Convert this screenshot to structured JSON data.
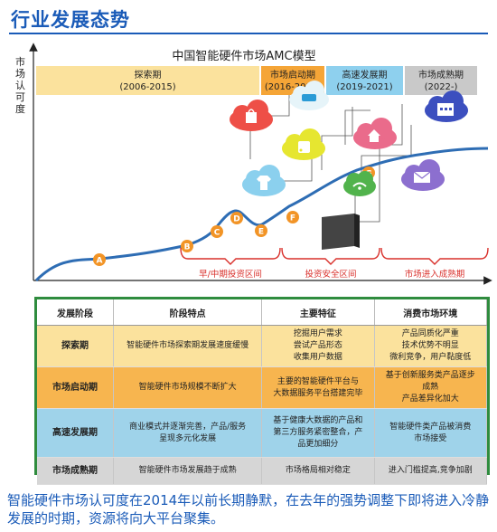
{
  "page": {
    "title": "行业发展态势",
    "caption": "智能硬件市场认可度在2014年以前长期静默，在去年的强势调整下即将进入冷静发展的时期，资源将向大平台聚集。"
  },
  "diagram": {
    "title": "中国智能硬件市场AMC模型",
    "ylabel": "市场认可度",
    "phases": [
      {
        "name": "探索期",
        "years": "(2006-2015)",
        "color": "#fbe29d"
      },
      {
        "name": "市场启动期",
        "years": "(2016-2018)",
        "color": "#f5a537"
      },
      {
        "name": "高速发展期",
        "years": "(2019-2021)",
        "color": "#8ed0ee"
      },
      {
        "name": "市场成熟期",
        "years": "(2022-)",
        "color": "#c9c9c9"
      }
    ],
    "points": [
      "A",
      "B",
      "C",
      "D",
      "E",
      "F",
      "G"
    ],
    "zones": [
      "早/中期投资区间",
      "投资安全区间",
      "市场进入成熟期"
    ],
    "icons": [
      "shirt-icon",
      "shopping-bag-icon",
      "rss-icon",
      "home-icon",
      "wifi-icon",
      "email-icon",
      "calendar-icon",
      "car-icon"
    ],
    "colors": {
      "curve": "#2e6db4",
      "point": "#f29426",
      "zone_bracket": "#d9312c"
    }
  },
  "table": {
    "headers": [
      "发展阶段",
      "阶段特点",
      "主要特征",
      "消费市场环境"
    ],
    "rows": [
      {
        "stage": "探索期",
        "feature": "智能硬件市场探索期发展速度缓慢",
        "main": "挖掘用户需求\n尝试产品形态\n收集用户数据",
        "consumer": "产品同质化严重\n技术优势不明显\n微利竞争，用户黏度低"
      },
      {
        "stage": "市场启动期",
        "feature": "智能硬件市场规模不断扩大",
        "main": "主要的智能硬件平台与\n大数据服务平台搭建完毕",
        "consumer": "基于创新服务类产品逐步\n成熟\n产品差异化加大"
      },
      {
        "stage": "高速发展期",
        "feature": "商业模式并逐渐完善，产品/服务\n呈现多元化发展",
        "main": "基于健康大数据的产品和\n第三方服务紧密整合，产\n品更加细分",
        "consumer": "智能硬件类产品被消费\n市场接受"
      },
      {
        "stage": "市场成熟期",
        "feature": "智能硬件市场发展趋于成熟",
        "main": "市场格局相对稳定",
        "consumer": "进入门槛提高,竞争加剧"
      }
    ]
  }
}
